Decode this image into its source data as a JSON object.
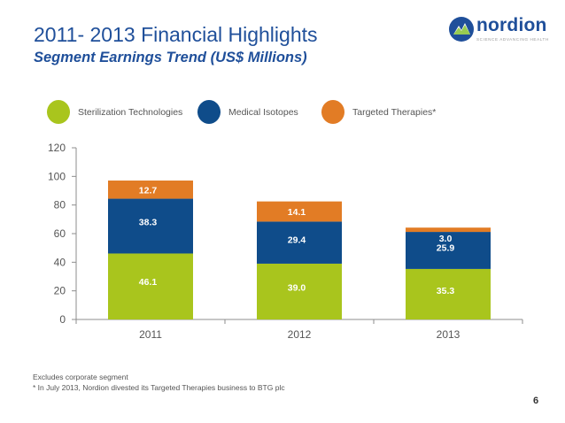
{
  "slide": {
    "title": "2011- 2013 Financial Highlights",
    "subtitle": "Segment Earnings Trend (US$ Millions)",
    "footnote_1": "Excludes corporate segment",
    "footnote_2": "* In July 2013, Nordion divested its Targeted Therapies business to BTG plc",
    "page_number": "6"
  },
  "logo": {
    "word": "nordion",
    "tagline": "SCIENCE ADVANCING HEALTH",
    "colors": {
      "blue": "#1f4f9a",
      "green": "#8dc63f"
    }
  },
  "chart_data": {
    "type": "bar",
    "stacked": true,
    "categories": [
      "2011",
      "2012",
      "2013"
    ],
    "series": [
      {
        "name": "Sterilization Technologies",
        "color": "#a9c51d",
        "values": [
          46.1,
          39.0,
          35.3
        ]
      },
      {
        "name": "Medical Isotopes",
        "color": "#0f4c8a",
        "values": [
          38.3,
          29.4,
          25.9
        ]
      },
      {
        "name": "Targeted Therapies*",
        "color": "#e27c25",
        "values": [
          12.7,
          14.1,
          3.0
        ]
      }
    ],
    "ylim": [
      0,
      120
    ],
    "yticks": [
      0,
      20,
      40,
      60,
      80,
      100,
      120
    ],
    "grid": false,
    "legend_position": "top",
    "data_labels": true
  }
}
